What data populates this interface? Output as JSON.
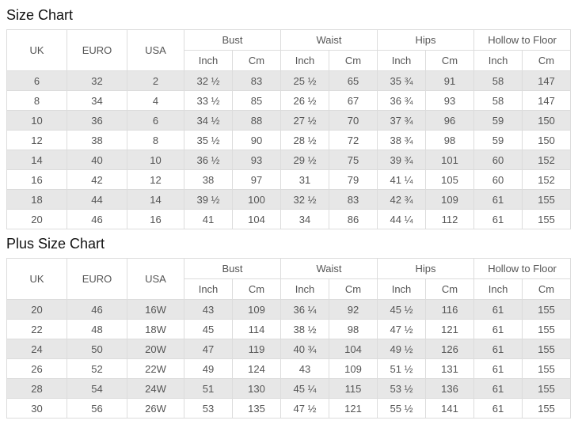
{
  "colors": {
    "border": "#dcdcdc",
    "stripe": "#e7e7e7",
    "text": "#555555",
    "title": "#111111",
    "background": "#ffffff"
  },
  "tables": [
    {
      "title": "Size Chart",
      "corner_headers": [
        "UK",
        "EURO",
        "USA"
      ],
      "group_headers": [
        "Bust",
        "Waist",
        "Hips",
        "Hollow to Floor"
      ],
      "unit_headers": [
        "Inch",
        "Cm"
      ],
      "rows": [
        [
          "6",
          "32",
          "2",
          "32 ½",
          "83",
          "25 ½",
          "65",
          "35 ¾",
          "91",
          "58",
          "147"
        ],
        [
          "8",
          "34",
          "4",
          "33 ½",
          "85",
          "26 ½",
          "67",
          "36 ¾",
          "93",
          "58",
          "147"
        ],
        [
          "10",
          "36",
          "6",
          "34 ½",
          "88",
          "27 ½",
          "70",
          "37 ¾",
          "96",
          "59",
          "150"
        ],
        [
          "12",
          "38",
          "8",
          "35 ½",
          "90",
          "28 ½",
          "72",
          "38 ¾",
          "98",
          "59",
          "150"
        ],
        [
          "14",
          "40",
          "10",
          "36 ½",
          "93",
          "29 ½",
          "75",
          "39 ¾",
          "101",
          "60",
          "152"
        ],
        [
          "16",
          "42",
          "12",
          "38",
          "97",
          "31",
          "79",
          "41 ¼",
          "105",
          "60",
          "152"
        ],
        [
          "18",
          "44",
          "14",
          "39 ½",
          "100",
          "32 ½",
          "83",
          "42 ¾",
          "109",
          "61",
          "155"
        ],
        [
          "20",
          "46",
          "16",
          "41",
          "104",
          "34",
          "86",
          "44 ¼",
          "112",
          "61",
          "155"
        ]
      ]
    },
    {
      "title": "Plus Size Chart",
      "corner_headers": [
        "UK",
        "EURO",
        "USA"
      ],
      "group_headers": [
        "Bust",
        "Waist",
        "Hips",
        "Hollow to Floor"
      ],
      "unit_headers": [
        "Inch",
        "Cm"
      ],
      "rows": [
        [
          "20",
          "46",
          "16W",
          "43",
          "109",
          "36 ¼",
          "92",
          "45 ½",
          "116",
          "61",
          "155"
        ],
        [
          "22",
          "48",
          "18W",
          "45",
          "114",
          "38 ½",
          "98",
          "47 ½",
          "121",
          "61",
          "155"
        ],
        [
          "24",
          "50",
          "20W",
          "47",
          "119",
          "40 ¾",
          "104",
          "49 ½",
          "126",
          "61",
          "155"
        ],
        [
          "26",
          "52",
          "22W",
          "49",
          "124",
          "43",
          "109",
          "51 ½",
          "131",
          "61",
          "155"
        ],
        [
          "28",
          "54",
          "24W",
          "51",
          "130",
          "45 ¼",
          "115",
          "53 ½",
          "136",
          "61",
          "155"
        ],
        [
          "30",
          "56",
          "26W",
          "53",
          "135",
          "47 ½",
          "121",
          "55 ½",
          "141",
          "61",
          "155"
        ]
      ]
    }
  ]
}
